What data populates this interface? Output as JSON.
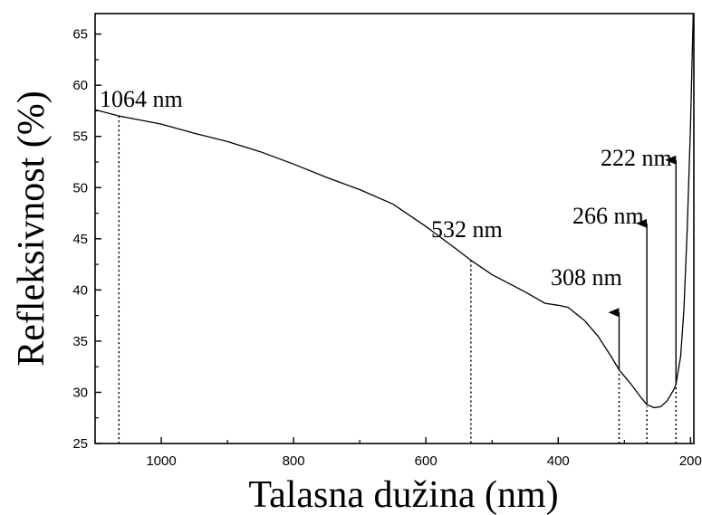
{
  "chart_data": {
    "type": "line",
    "title": "",
    "xlabel": "Talasna dužina (nm)",
    "ylabel": "Refleksivnost (%)",
    "xlim": [
      1100,
      195
    ],
    "ylim": [
      25,
      67
    ],
    "x_ticks": [
      1000,
      800,
      600,
      400,
      200
    ],
    "y_ticks": [
      25,
      30,
      35,
      40,
      45,
      50,
      55,
      60,
      65
    ],
    "grid": false,
    "line_color": "#000000",
    "series": [
      {
        "x": [
          1100,
          1064,
          1000,
          950,
          900,
          850,
          800,
          750,
          700,
          650,
          600,
          550,
          532,
          500,
          450,
          420,
          400,
          385,
          360,
          340,
          320,
          308,
          290,
          275,
          266,
          255,
          245,
          235,
          225,
          222,
          215,
          210,
          205,
          200,
          197,
          196
        ],
        "y": [
          57.6,
          57.0,
          56.2,
          55.3,
          54.5,
          53.5,
          52.3,
          51.0,
          49.8,
          48.4,
          46.2,
          43.8,
          42.9,
          41.5,
          39.8,
          38.7,
          38.5,
          38.3,
          37.0,
          35.5,
          33.5,
          32.2,
          30.8,
          29.5,
          28.8,
          28.5,
          28.6,
          29.2,
          30.3,
          30.8,
          33.5,
          38.0,
          46.0,
          56.0,
          64.0,
          67.0
        ]
      }
    ],
    "markers": [
      {
        "label": "1064 nm",
        "x": 1064,
        "y": 57.0,
        "style": "dotted"
      },
      {
        "label": "532 nm",
        "x": 532,
        "y": 42.9,
        "style": "dotted"
      },
      {
        "label": "308 nm",
        "x": 308,
        "y": 32.2,
        "style": "arrow",
        "arrow_to": 37.8
      },
      {
        "label": "266 nm",
        "x": 266,
        "y": 28.8,
        "style": "arrow",
        "arrow_to": 46.5
      },
      {
        "label": "222 nm",
        "x": 222,
        "y": 30.8,
        "style": "arrow",
        "arrow_to": 52.7
      }
    ]
  }
}
